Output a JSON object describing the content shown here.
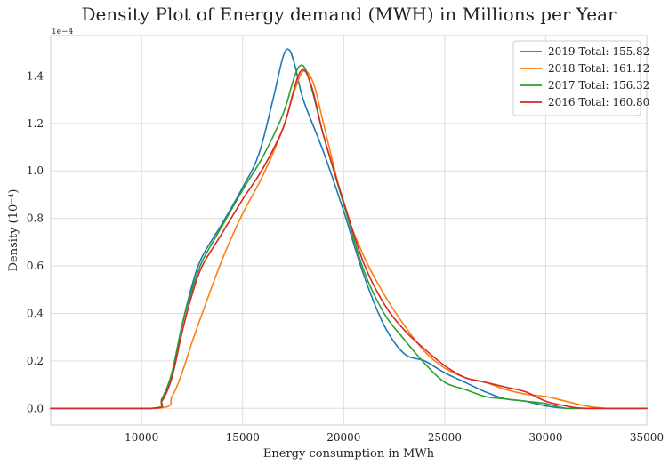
{
  "chart_data": {
    "type": "line",
    "title": "Density Plot of Energy demand (MWH) in Millions per Year",
    "xlabel": "Energy consumption in MWh",
    "ylabel": "Density (10⁻⁴)",
    "y_offset_label": "1e−4",
    "xlim": [
      5500,
      35000
    ],
    "ylim": [
      -0.07,
      1.57
    ],
    "xticks": [
      10000,
      15000,
      20000,
      25000,
      30000,
      35000
    ],
    "xtick_labels": [
      "10000",
      "15000",
      "20000",
      "25000",
      "30000",
      "35000"
    ],
    "yticks": [
      0.0,
      0.2,
      0.4,
      0.6,
      0.8,
      1.0,
      1.2,
      1.4
    ],
    "ytick_labels": [
      "0.0",
      "0.2",
      "0.4",
      "0.6",
      "0.8",
      "1.0",
      "1.2",
      "1.4"
    ],
    "grid": true,
    "legend_position": "top-right",
    "series": [
      {
        "name": "2019 Total: 155.82",
        "color": "#1f77b4",
        "x": [
          5500,
          10500,
          11000,
          11500,
          12000,
          12500,
          13000,
          14000,
          15000,
          15800,
          16500,
          17000,
          17300,
          17600,
          18000,
          19000,
          20000,
          21000,
          22000,
          23000,
          24000,
          25000,
          26000,
          27000,
          28000,
          29000,
          30000,
          31000,
          32000,
          35000
        ],
        "y": [
          0.0,
          0.0,
          0.04,
          0.15,
          0.35,
          0.52,
          0.64,
          0.78,
          0.93,
          1.07,
          1.3,
          1.48,
          1.51,
          1.44,
          1.3,
          1.08,
          0.83,
          0.56,
          0.35,
          0.23,
          0.2,
          0.15,
          0.11,
          0.07,
          0.04,
          0.03,
          0.01,
          0.0,
          0.0,
          0.0
        ]
      },
      {
        "name": "2018 Total: 161.12",
        "color": "#ff7f0e",
        "x": [
          5500,
          10800,
          11500,
          12000,
          12500,
          13000,
          14000,
          15000,
          16000,
          17000,
          17500,
          18000,
          18500,
          19000,
          20000,
          21000,
          22000,
          23000,
          24000,
          25000,
          26000,
          27000,
          28000,
          29000,
          30000,
          31000,
          32000,
          33000,
          35000
        ],
        "y": [
          0.0,
          0.0,
          0.05,
          0.15,
          0.28,
          0.4,
          0.63,
          0.82,
          0.98,
          1.18,
          1.32,
          1.42,
          1.37,
          1.2,
          0.86,
          0.64,
          0.48,
          0.35,
          0.24,
          0.17,
          0.13,
          0.11,
          0.08,
          0.06,
          0.05,
          0.03,
          0.01,
          0.0,
          0.0
        ]
      },
      {
        "name": "2017 Total: 156.32",
        "color": "#2ca02c",
        "x": [
          5500,
          10500,
          11000,
          11500,
          12000,
          12500,
          13000,
          14000,
          15000,
          16000,
          17000,
          17500,
          17800,
          18100,
          18500,
          19000,
          20000,
          21000,
          22000,
          23000,
          24000,
          25000,
          26000,
          27000,
          28000,
          29000,
          30000,
          31000,
          32000,
          35000
        ],
        "y": [
          0.0,
          0.0,
          0.04,
          0.15,
          0.35,
          0.5,
          0.62,
          0.77,
          0.92,
          1.06,
          1.24,
          1.38,
          1.44,
          1.43,
          1.32,
          1.15,
          0.86,
          0.58,
          0.4,
          0.29,
          0.19,
          0.11,
          0.08,
          0.05,
          0.04,
          0.03,
          0.02,
          0.0,
          0.0,
          0.0
        ]
      },
      {
        "name": "2016 Total: 160.80",
        "color": "#d62728",
        "x": [
          5500,
          10500,
          11000,
          11500,
          12000,
          12500,
          13000,
          14000,
          15000,
          16000,
          17000,
          17500,
          17800,
          18100,
          18500,
          19000,
          20000,
          21000,
          22000,
          23000,
          24000,
          25000,
          26000,
          27000,
          28000,
          29000,
          30000,
          31000,
          32000,
          35000
        ],
        "y": [
          0.0,
          0.0,
          0.03,
          0.13,
          0.32,
          0.48,
          0.6,
          0.74,
          0.88,
          1.01,
          1.18,
          1.33,
          1.41,
          1.42,
          1.33,
          1.15,
          0.87,
          0.61,
          0.44,
          0.33,
          0.25,
          0.18,
          0.13,
          0.11,
          0.09,
          0.07,
          0.03,
          0.01,
          0.0,
          0.0
        ]
      }
    ]
  }
}
